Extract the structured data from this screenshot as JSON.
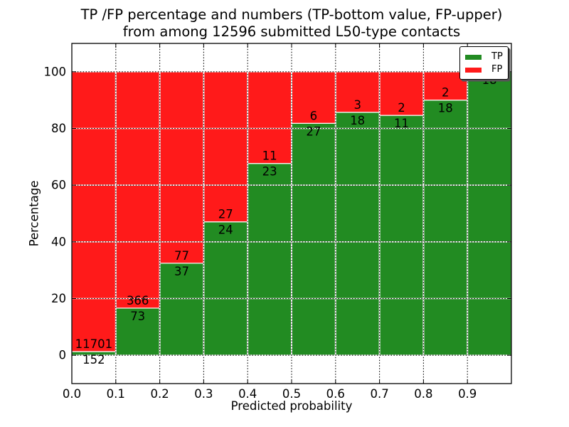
{
  "chart_data": {
    "type": "bar",
    "stacked": true,
    "title_line1": "TP /FP percentage and numbers (TP-bottom value, FP-upper)",
    "title_line2": "from among 12596 submitted L50-type contacts",
    "xlabel": "Predicted probability",
    "ylabel": "Percentage",
    "total_contacts": 12596,
    "xlim": [
      0.0,
      1.0
    ],
    "ylim": [
      -10,
      110
    ],
    "xtick_labels": [
      "0.0",
      "0.1",
      "0.2",
      "0.3",
      "0.4",
      "0.5",
      "0.6",
      "0.7",
      "0.8",
      "0.9"
    ],
    "ytick_values": [
      0,
      20,
      40,
      60,
      80,
      100
    ],
    "grid": "dotted",
    "colors": {
      "tp": "#228b22",
      "fp": "#ff1a1a"
    },
    "legend": {
      "position": "upper right",
      "entries": [
        {
          "label": "TP",
          "color": "#228b22"
        },
        {
          "label": "FP",
          "color": "#ff1a1a"
        }
      ]
    },
    "bars": [
      {
        "bin_start": 0.0,
        "bin_end": 0.1,
        "tp": 152,
        "fp": 11701,
        "tp_pct": 1.28,
        "fp_label_visible": true
      },
      {
        "bin_start": 0.1,
        "bin_end": 0.2,
        "tp": 73,
        "fp": 366,
        "tp_pct": 16.63,
        "fp_label_visible": true
      },
      {
        "bin_start": 0.2,
        "bin_end": 0.3,
        "tp": 37,
        "fp": 77,
        "tp_pct": 32.46,
        "fp_label_visible": true
      },
      {
        "bin_start": 0.3,
        "bin_end": 0.4,
        "tp": 24,
        "fp": 27,
        "tp_pct": 47.06,
        "fp_label_visible": true
      },
      {
        "bin_start": 0.4,
        "bin_end": 0.5,
        "tp": 23,
        "fp": 11,
        "tp_pct": 67.65,
        "fp_label_visible": true
      },
      {
        "bin_start": 0.5,
        "bin_end": 0.6,
        "tp": 27,
        "fp": 6,
        "tp_pct": 81.82,
        "fp_label_visible": true
      },
      {
        "bin_start": 0.6,
        "bin_end": 0.7,
        "tp": 18,
        "fp": 3,
        "tp_pct": 85.71,
        "fp_label_visible": true
      },
      {
        "bin_start": 0.7,
        "bin_end": 0.8,
        "tp": 11,
        "fp": 2,
        "tp_pct": 84.62,
        "fp_label_visible": true
      },
      {
        "bin_start": 0.8,
        "bin_end": 0.9,
        "tp": 18,
        "fp": 2,
        "tp_pct": 90.0,
        "fp_label_visible": true
      },
      {
        "bin_start": 0.9,
        "bin_end": 1.0,
        "tp": 18,
        "fp": 0,
        "tp_pct": 100.0,
        "fp_label_visible": false
      }
    ]
  }
}
